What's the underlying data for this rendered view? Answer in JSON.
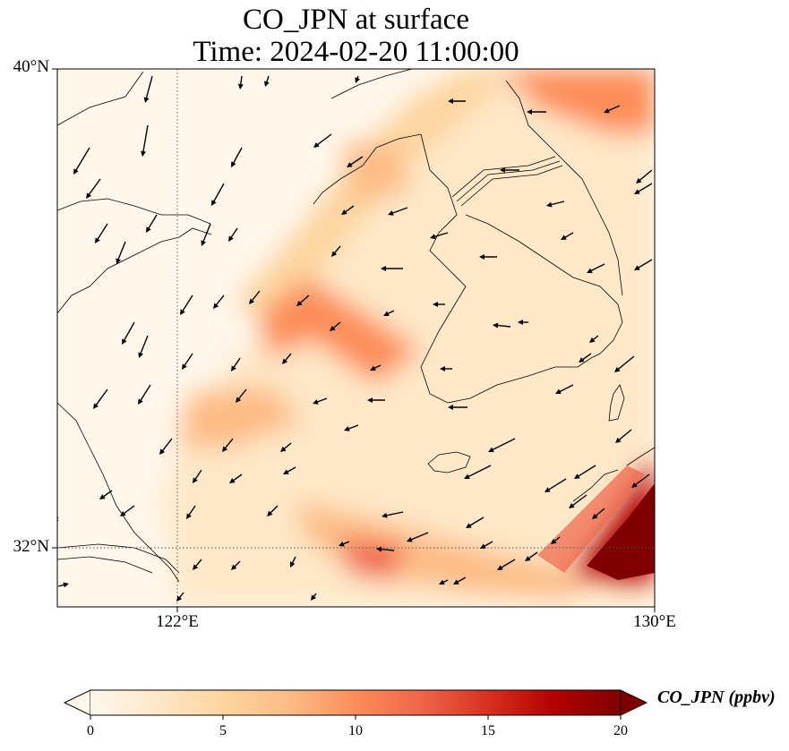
{
  "title": {
    "line1": "CO_JPN at surface",
    "line2": "Time: 2024-02-20 11:00:00"
  },
  "map": {
    "lat_labels": [
      "40°N",
      "32°N"
    ],
    "lon_labels": [
      "122°E",
      "130°E"
    ],
    "lon_range": [
      120,
      130
    ],
    "lat_range": [
      31,
      40
    ],
    "gridlines": "dotted",
    "arrow_color": "#000000",
    "coast_color": "#000000"
  },
  "colorbar": {
    "label": "CO_JPN (ppbv)",
    "ticks": [
      "0",
      "5",
      "10",
      "15",
      "20"
    ],
    "range": [
      0,
      20
    ],
    "colormap": "OrRd",
    "colors": [
      "#fff7ec",
      "#fee8c8",
      "#fdd49e",
      "#fdbb84",
      "#fc8d59",
      "#ef6548",
      "#d7301f",
      "#b30000",
      "#7f0000"
    ],
    "extend": "both"
  }
}
